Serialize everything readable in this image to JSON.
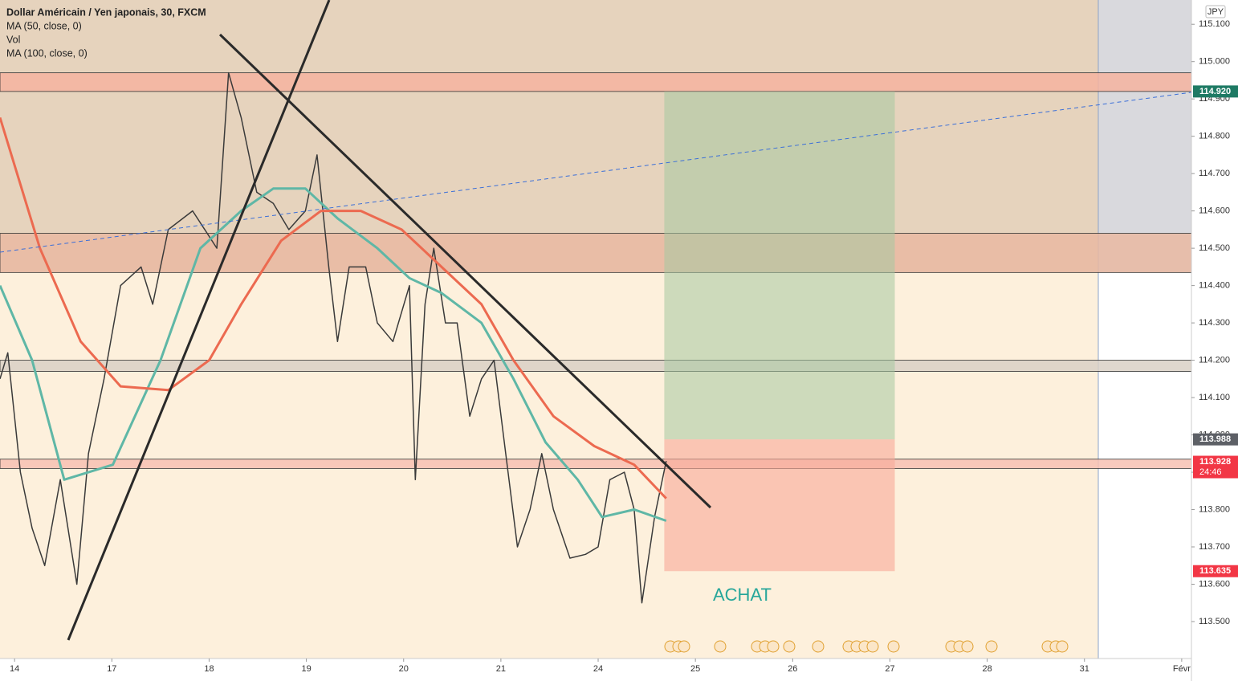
{
  "chart_data": {
    "type": "line",
    "title": "Dollar Américain / Yen japonais, 30, FXCM",
    "indicators": [
      "MA (50, close, 0)",
      "Vol",
      "MA (100, close, 0)"
    ],
    "currency": "JPY",
    "annotation": "ACHAT",
    "xlim": [
      -0.15,
      12.1
    ],
    "xticks": [
      {
        "value": 0,
        "label": "14"
      },
      {
        "value": 1,
        "label": "17"
      },
      {
        "value": 2,
        "label": "18"
      },
      {
        "value": 3,
        "label": "19"
      },
      {
        "value": 4,
        "label": "20"
      },
      {
        "value": 5,
        "label": "21"
      },
      {
        "value": 6,
        "label": "24"
      },
      {
        "value": 7,
        "label": "25"
      },
      {
        "value": 8,
        "label": "26"
      },
      {
        "value": 9,
        "label": "27"
      },
      {
        "value": 10,
        "label": "28"
      },
      {
        "value": 11,
        "label": "31"
      },
      {
        "value": 12,
        "label": "Févr"
      }
    ],
    "ylim": [
      113.401,
      115.165
    ],
    "yticks": [
      {
        "value": 113.5,
        "label": "113.500"
      },
      {
        "value": 113.6,
        "label": "113.600"
      },
      {
        "value": 113.7,
        "label": "113.700"
      },
      {
        "value": 113.8,
        "label": "113.800"
      },
      {
        "value": 113.9,
        "label": "113.900"
      },
      {
        "value": 114.0,
        "label": "114.000"
      },
      {
        "value": 114.1,
        "label": "114.100"
      },
      {
        "value": 114.2,
        "label": "114.200"
      },
      {
        "value": 114.3,
        "label": "114.300"
      },
      {
        "value": 114.4,
        "label": "114.400"
      },
      {
        "value": 114.5,
        "label": "114.500"
      },
      {
        "value": 114.6,
        "label": "114.600"
      },
      {
        "value": 114.7,
        "label": "114.700"
      },
      {
        "value": 114.8,
        "label": "114.800"
      },
      {
        "value": 114.9,
        "label": "114.900"
      },
      {
        "value": 115.0,
        "label": "115.000"
      },
      {
        "value": 115.1,
        "label": "115.100"
      }
    ],
    "series": [
      {
        "name": "Price",
        "color": "#3a3a3a",
        "x": [
          -0.15,
          -0.07,
          0.06,
          0.18,
          0.31,
          0.47,
          0.64,
          0.76,
          0.92,
          1.09,
          1.3,
          1.42,
          1.58,
          1.83,
          2.08,
          2.2,
          2.33,
          2.49,
          2.66,
          2.82,
          2.99,
          3.11,
          3.23,
          3.32,
          3.44,
          3.61,
          3.73,
          3.89,
          4.06,
          4.12,
          4.22,
          4.31,
          4.43,
          4.55,
          4.68,
          4.8,
          4.93,
          5.05,
          5.17,
          5.3,
          5.42,
          5.54,
          5.71,
          5.87,
          6.0,
          6.12,
          6.27,
          6.37,
          6.45,
          6.58,
          6.7
        ],
        "values": [
          114.15,
          114.22,
          113.9,
          113.75,
          113.65,
          113.88,
          113.6,
          113.95,
          114.15,
          114.4,
          114.45,
          114.35,
          114.55,
          114.6,
          114.5,
          114.97,
          114.85,
          114.65,
          114.62,
          114.55,
          114.6,
          114.75,
          114.45,
          114.25,
          114.45,
          114.45,
          114.3,
          114.25,
          114.4,
          113.88,
          114.35,
          114.5,
          114.3,
          114.3,
          114.05,
          114.15,
          114.2,
          113.95,
          113.7,
          113.8,
          113.95,
          113.8,
          113.67,
          113.68,
          113.7,
          113.88,
          113.9,
          113.8,
          113.55,
          113.78,
          113.93
        ]
      },
      {
        "name": "MA (50, close, 0)",
        "color": "#5fb7a6",
        "x": [
          -0.15,
          0.18,
          0.51,
          1.01,
          1.5,
          1.91,
          2.33,
          2.66,
          2.99,
          3.32,
          3.73,
          4.06,
          4.39,
          4.8,
          5.13,
          5.46,
          5.79,
          6.04,
          6.37,
          6.7
        ],
        "values": [
          114.4,
          114.2,
          113.88,
          113.92,
          114.2,
          114.5,
          114.6,
          114.66,
          114.66,
          114.58,
          114.5,
          114.42,
          114.38,
          114.3,
          114.15,
          113.98,
          113.88,
          113.78,
          113.8,
          113.77
        ]
      },
      {
        "name": "MA (100, close, 0)",
        "color": "#ec6a50",
        "x": [
          -0.15,
          0.26,
          0.68,
          1.09,
          1.58,
          2.0,
          2.33,
          2.74,
          3.15,
          3.56,
          3.98,
          4.39,
          4.8,
          5.13,
          5.54,
          5.96,
          6.37,
          6.7
        ],
        "values": [
          114.85,
          114.5,
          114.25,
          114.13,
          114.12,
          114.2,
          114.35,
          114.52,
          114.6,
          114.6,
          114.55,
          114.45,
          114.35,
          114.2,
          114.05,
          113.97,
          113.92,
          113.83
        ]
      }
    ],
    "zones": [
      {
        "from": 114.92,
        "to": 114.97,
        "color": "#f4b3a0"
      },
      {
        "from": 114.435,
        "to": 114.54,
        "color": "#e9b9a2"
      },
      {
        "from": 114.17,
        "to": 114.2,
        "color": "#d9d0c6"
      },
      {
        "from": 113.91,
        "to": 113.935,
        "color": "#f7c1b3"
      }
    ],
    "position": {
      "x": [
        6.68,
        9.05
      ],
      "entry": 113.988,
      "target": 114.92,
      "stop": 113.635
    },
    "price_labels": [
      {
        "value": 114.92,
        "label": "114.920",
        "color": "#1e7a64"
      },
      {
        "value": 113.988,
        "label": "113.988",
        "color": "#5d6066"
      },
      {
        "value": 113.928,
        "label": "113.928",
        "color": "#f23645"
      },
      {
        "value": 113.635,
        "label": "113.635",
        "color": "#f23645"
      }
    ],
    "countdown": "24:46"
  }
}
